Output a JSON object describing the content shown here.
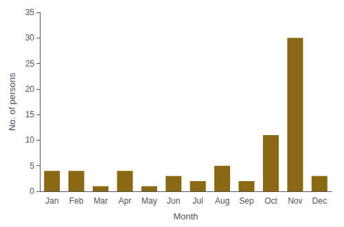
{
  "chart_data": {
    "type": "bar",
    "categories": [
      "Jan",
      "Feb",
      "Mar",
      "Apr",
      "May",
      "Jun",
      "Jul",
      "Aug",
      "Sep",
      "Oct",
      "Nov",
      "Dec"
    ],
    "values": [
      4,
      4,
      1,
      4,
      1,
      3,
      2,
      5,
      2,
      11,
      30,
      3
    ],
    "color": "#8B6914",
    "xlabel": "Month",
    "ylabel": "No. of persons",
    "ylim": [
      0,
      35
    ],
    "yticks": [
      0,
      5,
      10,
      15,
      20,
      25,
      30,
      35
    ],
    "grid": false
  }
}
